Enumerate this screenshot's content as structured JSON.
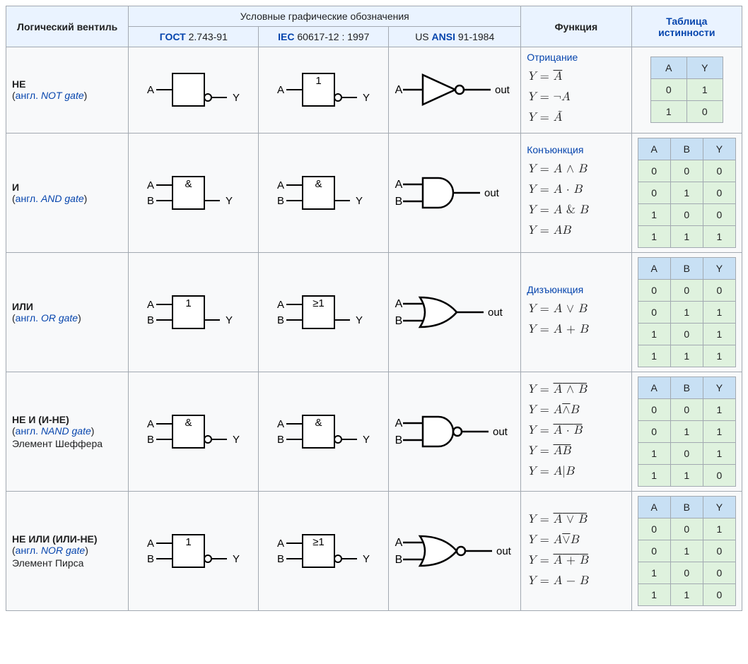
{
  "headers": {
    "gate": "Логический вентиль",
    "symbols_group": "Условные графические обозначения",
    "gost": "ГОСТ",
    "gost_suffix": " 2.743-91",
    "iec_prefix": "IEC",
    "iec_suffix": " 60617-12 : 1997",
    "ansi_prefix": "US ",
    "ansi": "ANSI",
    "ansi_suffix": " 91-1984",
    "function": "Функция",
    "truth": "Таблица истинности"
  },
  "palette": {
    "border": "#a2a9b1",
    "header_bg": "#eaf3ff",
    "link": "#0645ad",
    "truth_header_bg": "#c8e0f4",
    "truth_cell_bg": "#dff2de",
    "table_bg": "#f8f9fa",
    "stroke": "#000000"
  },
  "labels": {
    "angl": "англ."
  },
  "gates": [
    {
      "id": "not",
      "name_ru": "НЕ",
      "name_en": "NOT gate",
      "extra": null,
      "func_link": "Отрицание",
      "formulas_html": "<span><i>Y</i> = <span class='ov'><i>A</i></span></span><br><span><i>Y</i> = ¬<i>A</i></span><br><span><i>Y</i> = <i>Ã</i></span>",
      "truth": {
        "cols": [
          "A",
          "Y"
        ],
        "rows": [
          [
            "0",
            "1"
          ],
          [
            "1",
            "0"
          ]
        ]
      },
      "gost": {
        "inputs": 1,
        "bubble": true,
        "label": ""
      },
      "iec": {
        "inputs": 1,
        "bubble": true,
        "label": "1"
      },
      "ansi": {
        "shape": "not",
        "bubble": true
      }
    },
    {
      "id": "and",
      "name_ru": "И",
      "name_en": "AND gate",
      "extra": null,
      "func_link": "Конъюнкция",
      "formulas_html": "<span><i>Y</i> = <i>A</i> ∧ <i>B</i></span><br><span><i>Y</i> = <i>A</i> · <i>B</i></span><br><span><i>Y</i> = <i>A</i> &amp; <i>B</i></span><br><span><i>Y</i> = <i>AB</i></span>",
      "truth": {
        "cols": [
          "A",
          "B",
          "Y"
        ],
        "rows": [
          [
            "0",
            "0",
            "0"
          ],
          [
            "0",
            "1",
            "0"
          ],
          [
            "1",
            "0",
            "0"
          ],
          [
            "1",
            "1",
            "1"
          ]
        ]
      },
      "gost": {
        "inputs": 2,
        "bubble": false,
        "label": "&"
      },
      "iec": {
        "inputs": 2,
        "bubble": false,
        "label": "&"
      },
      "ansi": {
        "shape": "and",
        "bubble": false
      }
    },
    {
      "id": "or",
      "name_ru": "ИЛИ",
      "name_en": "OR gate",
      "extra": null,
      "func_link": "Дизъюнкция",
      "formulas_html": "<span><i>Y</i> = <i>A</i> ∨ <i>B</i></span><br><span><i>Y</i> = <i>A</i> + <i>B</i></span>",
      "truth": {
        "cols": [
          "A",
          "B",
          "Y"
        ],
        "rows": [
          [
            "0",
            "0",
            "0"
          ],
          [
            "0",
            "1",
            "1"
          ],
          [
            "1",
            "0",
            "1"
          ],
          [
            "1",
            "1",
            "1"
          ]
        ]
      },
      "gost": {
        "inputs": 2,
        "bubble": false,
        "label": "1"
      },
      "iec": {
        "inputs": 2,
        "bubble": false,
        "label": "≥1"
      },
      "ansi": {
        "shape": "or",
        "bubble": false
      }
    },
    {
      "id": "nand",
      "name_ru": "НЕ И (И-НЕ)",
      "name_en": "NAND gate",
      "extra": "Элемент Шеффера",
      "func_link": null,
      "formulas_html": "<span><i>Y</i> = <span class='ov'><i>A</i> ∧ <i>B</i></span></span><br><span><i>Y</i> = <i>A</i><span class='ov'>∧</span><i>B</i></span><br><span><i>Y</i> = <span class='ov'><i>A</i> · <i>B</i></span></span><br><span><i>Y</i> = <span class='ov'><i>AB</i></span></span><br><span><i>Y</i> = <i>A</i>|<i>B</i></span>",
      "truth": {
        "cols": [
          "A",
          "B",
          "Y"
        ],
        "rows": [
          [
            "0",
            "0",
            "1"
          ],
          [
            "0",
            "1",
            "1"
          ],
          [
            "1",
            "0",
            "1"
          ],
          [
            "1",
            "1",
            "0"
          ]
        ]
      },
      "gost": {
        "inputs": 2,
        "bubble": true,
        "label": "&"
      },
      "iec": {
        "inputs": 2,
        "bubble": true,
        "label": "&"
      },
      "ansi": {
        "shape": "and",
        "bubble": true
      }
    },
    {
      "id": "nor",
      "name_ru": "НЕ ИЛИ (ИЛИ-НЕ)",
      "name_en": "NOR gate",
      "extra": "Элемент Пирса",
      "func_link": null,
      "formulas_html": "<span><i>Y</i> = <span class='ov'><i>A</i> ∨ <i>B</i></span></span><br><span><i>Y</i> = <i>A</i><span class='ov'>∨</span><i>B</i></span><br><span><i>Y</i> = <span class='ov'><i>A</i> + <i>B</i></span></span><br><span><i>Y</i> = <i>A</i> − <i>B</i></span>",
      "truth": {
        "cols": [
          "A",
          "B",
          "Y"
        ],
        "rows": [
          [
            "0",
            "0",
            "1"
          ],
          [
            "0",
            "1",
            "0"
          ],
          [
            "1",
            "0",
            "0"
          ],
          [
            "1",
            "1",
            "0"
          ]
        ]
      },
      "gost": {
        "inputs": 2,
        "bubble": true,
        "label": "1"
      },
      "iec": {
        "inputs": 2,
        "bubble": true,
        "label": "≥1"
      },
      "ansi": {
        "shape": "or",
        "bubble": true
      }
    }
  ]
}
